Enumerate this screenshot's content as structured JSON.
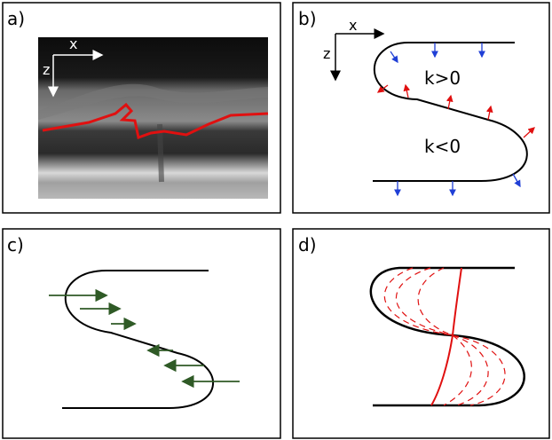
{
  "panels": [
    {
      "label": "a)",
      "axes": {
        "x": "x",
        "z": "z"
      }
    },
    {
      "label": "b)",
      "axes": {
        "x": "x",
        "z": "z"
      },
      "annotations": [
        "k>0",
        "k<0"
      ]
    },
    {
      "label": "c)"
    },
    {
      "label": "d)"
    }
  ]
}
